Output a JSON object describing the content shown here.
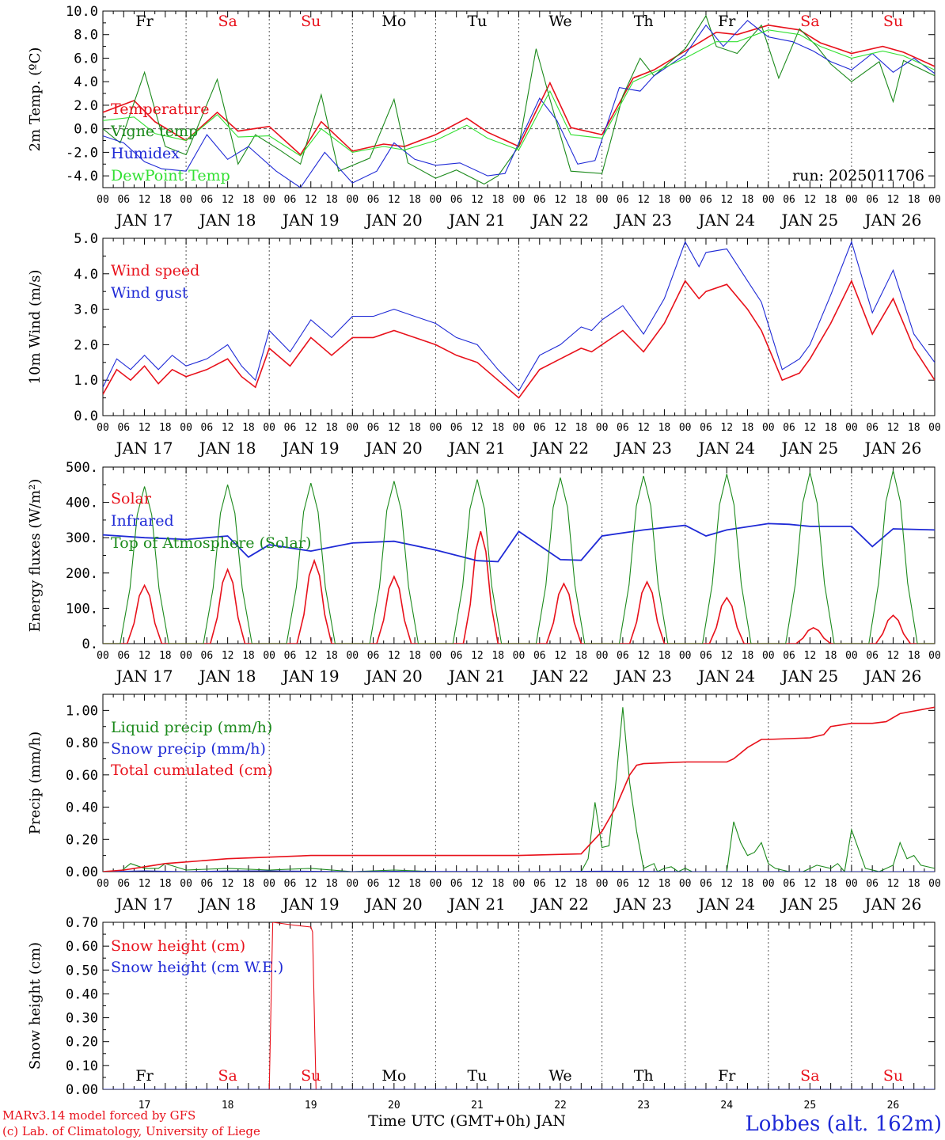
{
  "run_label": "run: 2025011706",
  "footer": {
    "credit_line1": "MARv3.14 model forced by GFS",
    "credit_line2": "(c) Lab. of Climatology, University of Liege",
    "axis_title": "Time UTC (GMT+0h) JAN",
    "station": "Lobbes (alt. 162m)"
  },
  "colors": {
    "red": "#e8111b",
    "green": "#1c8a1c",
    "blue": "#1f2ad6",
    "lightgreen": "#33e033",
    "weekend": "#e8111b",
    "weekday": "#000000"
  },
  "time_axis": {
    "hour_labels": [
      "00",
      "06",
      "12",
      "18"
    ],
    "date_labels": [
      "JAN 17",
      "JAN 18",
      "JAN 19",
      "JAN 20",
      "JAN 21",
      "JAN 22",
      "JAN 23",
      "JAN 24",
      "JAN 25",
      "JAN 26"
    ],
    "day_names": [
      "Fr",
      "Sa",
      "Su",
      "Mo",
      "Tu",
      "We",
      "Th",
      "Fr",
      "Sa",
      "Su"
    ],
    "weekend": [
      false,
      true,
      true,
      false,
      false,
      false,
      false,
      false,
      true,
      true
    ],
    "day_numbers": [
      "17",
      "18",
      "19",
      "20",
      "21",
      "22",
      "23",
      "24",
      "25",
      "26"
    ],
    "end_hour_label": "00",
    "hours_total": 240
  },
  "chart_data": [
    {
      "type": "line",
      "ylabel": "2m Temp. (ºC)",
      "ylim": [
        -5,
        10
      ],
      "yticks": [
        "-4.0",
        "-2.0",
        "0.0",
        "2.0",
        "4.0",
        "6.0",
        "8.0",
        "10.0"
      ],
      "ytick_values": [
        -4,
        -2,
        0,
        2,
        4,
        6,
        8,
        10
      ],
      "zero_line": true,
      "series": [
        {
          "name": "Temperature",
          "color": "red",
          "x": [
            0,
            9,
            15,
            24,
            33,
            39,
            48,
            57,
            63,
            72,
            81,
            87,
            96,
            105,
            111,
            120,
            129,
            135,
            144,
            153,
            159,
            168,
            177,
            183,
            192,
            201,
            207,
            216,
            225,
            231,
            240
          ],
          "y": [
            1.4,
            2.4,
            0.6,
            -1.0,
            1.4,
            -0.2,
            0.2,
            -2.2,
            0.6,
            -1.9,
            -1.3,
            -1.5,
            -0.5,
            0.9,
            -0.3,
            -1.5,
            3.9,
            0.1,
            -0.5,
            4.3,
            5.0,
            6.6,
            8.2,
            8.0,
            8.8,
            8.4,
            7.3,
            6.4,
            7.0,
            6.5,
            5.3
          ]
        },
        {
          "name": "Vigne temp",
          "color": "green",
          "x": [
            0,
            5,
            12,
            18,
            24,
            33,
            39,
            44,
            51,
            57,
            63,
            68,
            77,
            84,
            88,
            96,
            102,
            110,
            114,
            120,
            125,
            129,
            135,
            144,
            150,
            155,
            159,
            168,
            174,
            177,
            183,
            190,
            195,
            201,
            206,
            210,
            216,
            224,
            228,
            231,
            240
          ],
          "y": [
            0.0,
            -1.2,
            4.8,
            -1.5,
            -2.2,
            4.2,
            -3.0,
            -0.5,
            -1.8,
            -3.0,
            2.9,
            -3.6,
            -2.5,
            2.5,
            -2.9,
            -4.2,
            -3.5,
            -4.7,
            -4.0,
            -1.5,
            6.8,
            2.5,
            -3.6,
            -3.8,
            2.8,
            6.0,
            4.5,
            6.8,
            9.6,
            7.0,
            6.4,
            8.8,
            4.3,
            8.5,
            7.0,
            5.5,
            4.0,
            5.7,
            2.3,
            5.8,
            4.5
          ]
        },
        {
          "name": "Humidex",
          "color": "blue",
          "x": [
            0,
            6,
            12,
            17,
            24,
            30,
            36,
            42,
            50,
            57,
            64,
            72,
            79,
            84,
            90,
            96,
            103,
            111,
            116,
            120,
            126,
            131,
            137,
            142,
            149,
            155,
            159,
            168,
            174,
            179,
            186,
            192,
            199,
            205,
            210,
            216,
            222,
            228,
            234,
            240
          ],
          "y": [
            -0.6,
            -1.2,
            -2.8,
            -3.4,
            -3.6,
            -0.5,
            -2.6,
            -1.5,
            -3.6,
            -5.0,
            -2.0,
            -4.6,
            -3.6,
            -1.2,
            -2.6,
            -3.1,
            -2.9,
            -4.0,
            -3.8,
            -1.2,
            2.6,
            0.7,
            -3.0,
            -2.7,
            3.5,
            3.2,
            4.5,
            6.3,
            8.8,
            7.0,
            9.2,
            7.8,
            7.4,
            6.6,
            5.7,
            5.0,
            6.4,
            4.8,
            6.0,
            4.7
          ]
        },
        {
          "name": "DewPoint Temp",
          "color": "lightgreen",
          "x": [
            0,
            9,
            15,
            24,
            33,
            39,
            48,
            57,
            63,
            72,
            81,
            87,
            96,
            105,
            111,
            120,
            129,
            135,
            144,
            153,
            159,
            168,
            177,
            183,
            192,
            201,
            207,
            216,
            225,
            231,
            240
          ],
          "y": [
            0.7,
            1.0,
            -0.4,
            -1.0,
            1.2,
            -0.7,
            -0.6,
            -2.3,
            0.0,
            -2.0,
            -1.5,
            -1.8,
            -1.0,
            0.3,
            -0.8,
            -1.8,
            3.2,
            -0.5,
            -0.8,
            4.0,
            4.8,
            6.0,
            7.4,
            7.4,
            8.4,
            8.0,
            7.0,
            6.0,
            6.6,
            6.2,
            5.0
          ]
        }
      ],
      "legend_position": "left",
      "grid": "vertical-dotted"
    },
    {
      "type": "line",
      "ylabel": "10m Wind (m/s)",
      "ylim": [
        0,
        5
      ],
      "yticks": [
        "0.0",
        "1.0",
        "2.0",
        "3.0",
        "4.0",
        "5.0"
      ],
      "ytick_values": [
        0,
        1,
        2,
        3,
        4,
        5
      ],
      "series": [
        {
          "name": "Wind speed",
          "color": "red",
          "x": [
            0,
            4,
            8,
            12,
            16,
            20,
            24,
            30,
            36,
            40,
            44,
            48,
            54,
            60,
            66,
            72,
            78,
            84,
            90,
            96,
            102,
            108,
            114,
            120,
            126,
            132,
            138,
            141,
            144,
            150,
            156,
            162,
            168,
            172,
            174,
            180,
            186,
            190,
            196,
            201,
            204,
            210,
            216,
            222,
            228,
            234,
            240
          ],
          "y": [
            0.6,
            1.3,
            1.0,
            1.4,
            0.9,
            1.3,
            1.1,
            1.3,
            1.6,
            1.1,
            0.8,
            1.9,
            1.4,
            2.2,
            1.7,
            2.2,
            2.2,
            2.4,
            2.2,
            2.0,
            1.7,
            1.5,
            1.0,
            0.5,
            1.3,
            1.6,
            1.9,
            1.8,
            2.0,
            2.4,
            1.8,
            2.6,
            3.8,
            3.3,
            3.5,
            3.7,
            3.0,
            2.4,
            1.0,
            1.2,
            1.6,
            2.6,
            3.8,
            2.3,
            3.3,
            1.9,
            1.0
          ]
        },
        {
          "name": "Wind gust",
          "color": "blue",
          "x": [
            0,
            4,
            8,
            12,
            16,
            20,
            24,
            30,
            36,
            40,
            44,
            48,
            54,
            60,
            66,
            72,
            78,
            84,
            90,
            96,
            102,
            108,
            114,
            120,
            126,
            132,
            138,
            141,
            144,
            150,
            156,
            162,
            168,
            172,
            174,
            180,
            186,
            190,
            196,
            201,
            204,
            210,
            216,
            222,
            228,
            234,
            240
          ],
          "y": [
            0.8,
            1.6,
            1.3,
            1.7,
            1.3,
            1.7,
            1.4,
            1.6,
            2.0,
            1.4,
            1.0,
            2.4,
            1.8,
            2.7,
            2.2,
            2.8,
            2.8,
            3.0,
            2.8,
            2.6,
            2.2,
            2.0,
            1.3,
            0.7,
            1.7,
            2.0,
            2.5,
            2.4,
            2.7,
            3.1,
            2.3,
            3.3,
            4.9,
            4.2,
            4.6,
            4.7,
            3.8,
            3.2,
            1.3,
            1.6,
            2.0,
            3.4,
            4.9,
            2.9,
            4.1,
            2.3,
            1.5
          ]
        }
      ],
      "legend_position": "left",
      "grid": "vertical-dotted"
    },
    {
      "type": "line",
      "ylabel": "Energy fluxes (W/m²)",
      "ylim": [
        0,
        500
      ],
      "yticks": [
        "0.",
        "100.",
        "200.",
        "300.",
        "400.",
        "500."
      ],
      "ytick_values": [
        0,
        100,
        200,
        300,
        400,
        500
      ],
      "series": [
        {
          "name": "Solar",
          "color": "red",
          "peaks": [
            [
              12,
              165
            ],
            [
              36,
              210
            ],
            [
              61,
              235
            ],
            [
              84,
              190
            ],
            [
              109,
              318
            ],
            [
              133,
              170
            ],
            [
              157,
              175
            ],
            [
              180,
              130
            ],
            [
              205,
              45
            ],
            [
              228,
              80
            ]
          ]
        },
        {
          "name": "Infrared",
          "color": "blue",
          "x": [
            0,
            12,
            24,
            36,
            42,
            48,
            60,
            72,
            84,
            96,
            108,
            114,
            120,
            132,
            138,
            144,
            156,
            168,
            174,
            180,
            192,
            198,
            204,
            216,
            222,
            228,
            240
          ],
          "y": [
            308,
            300,
            295,
            305,
            245,
            280,
            262,
            285,
            290,
            265,
            235,
            232,
            318,
            238,
            236,
            305,
            322,
            335,
            305,
            322,
            340,
            338,
            332,
            332,
            275,
            325,
            322
          ]
        },
        {
          "name": "Top of Atmosphere (Solar)",
          "color": "green",
          "peaks": [
            [
              12,
              445
            ],
            [
              36,
              450
            ],
            [
              60,
              455
            ],
            [
              84,
              460
            ],
            [
              108,
              465
            ],
            [
              132,
              470
            ],
            [
              156,
              475
            ],
            [
              180,
              480
            ],
            [
              204,
              485
            ],
            [
              228,
              490
            ]
          ]
        }
      ],
      "legend_position": "left",
      "grid": "vertical-dotted"
    },
    {
      "type": "line",
      "ylabel": "Precip (mm/h)",
      "ylim": [
        0,
        1.1
      ],
      "yticks": [
        "0.00",
        "0.20",
        "0.40",
        "0.60",
        "0.80",
        "1.00"
      ],
      "ytick_values": [
        0,
        0.2,
        0.4,
        0.6,
        0.8,
        1.0
      ],
      "series": [
        {
          "name": "Liquid precip (mm/h)",
          "color": "green",
          "x": [
            0,
            5,
            8,
            12,
            16,
            18,
            24,
            36,
            48,
            60,
            72,
            84,
            96,
            120,
            138,
            140,
            142,
            144,
            146,
            148,
            150,
            152,
            154,
            156,
            159,
            160,
            162,
            164,
            166,
            168,
            170,
            175,
            180,
            182,
            184,
            186,
            188,
            190,
            192,
            194,
            196,
            198,
            202,
            206,
            210,
            212,
            214,
            216,
            220,
            224,
            228,
            230,
            232,
            234,
            236,
            240
          ],
          "y": [
            0,
            0,
            0.05,
            0.02,
            0.02,
            0.05,
            0.01,
            0.02,
            0.01,
            0.02,
            0.0,
            0.01,
            0.0,
            0.0,
            0.0,
            0.08,
            0.43,
            0.15,
            0.16,
            0.55,
            1.02,
            0.55,
            0.25,
            0.02,
            0.05,
            0.0,
            0.02,
            0.03,
            0.0,
            0.02,
            0.0,
            0.0,
            0.0,
            0.31,
            0.18,
            0.1,
            0.12,
            0.18,
            0.05,
            0.02,
            0.01,
            0.0,
            0.0,
            0.04,
            0.02,
            0.05,
            0.0,
            0.26,
            0.02,
            0.0,
            0.04,
            0.18,
            0.08,
            0.1,
            0.04,
            0.02
          ]
        },
        {
          "name": "Snow precip (mm/h)",
          "color": "blue",
          "x": [
            0,
            12,
            24,
            36,
            48,
            60,
            72,
            84,
            96,
            120,
            144,
            168,
            192,
            216,
            240
          ],
          "y": [
            0,
            0.005,
            0,
            0.004,
            0.005,
            0.002,
            0,
            0.002,
            0.001,
            0,
            0.003,
            0,
            0,
            0,
            0
          ]
        },
        {
          "name": "Total cumulated (cm)",
          "color": "red",
          "x": [
            0,
            6,
            12,
            18,
            24,
            36,
            48,
            60,
            72,
            96,
            120,
            138,
            141,
            144,
            148,
            152,
            154,
            156,
            168,
            180,
            182,
            186,
            190,
            192,
            204,
            208,
            210,
            216,
            222,
            226,
            230,
            240
          ],
          "y": [
            0,
            0.01,
            0.03,
            0.05,
            0.06,
            0.08,
            0.09,
            0.1,
            0.1,
            0.1,
            0.1,
            0.11,
            0.18,
            0.25,
            0.4,
            0.6,
            0.66,
            0.67,
            0.68,
            0.68,
            0.7,
            0.77,
            0.82,
            0.82,
            0.83,
            0.85,
            0.9,
            0.92,
            0.92,
            0.93,
            0.98,
            1.02
          ]
        }
      ],
      "legend_position": "left",
      "grid": "vertical-dotted"
    },
    {
      "type": "line",
      "ylabel": "Snow height (cm)",
      "ylim": [
        0,
        0.7
      ],
      "yticks": [
        "0.00",
        "0.10",
        "0.20",
        "0.30",
        "0.40",
        "0.50",
        "0.60",
        "0.70"
      ],
      "ytick_values": [
        0,
        0.1,
        0.2,
        0.3,
        0.4,
        0.5,
        0.6,
        0.7
      ],
      "series": [
        {
          "name": "Snow height (cm)",
          "color": "red",
          "x": [
            0,
            48,
            49,
            54,
            60,
            60.5,
            61.5,
            240
          ],
          "y": [
            0,
            0,
            0.7,
            0.69,
            0.68,
            0.66,
            0,
            0
          ]
        },
        {
          "name": "Snow height (cm W.E.)",
          "color": "blue",
          "x": [
            0,
            240
          ],
          "y": [
            0,
            0
          ]
        }
      ],
      "legend_position": "left",
      "grid": "vertical-dotted-dense"
    }
  ]
}
